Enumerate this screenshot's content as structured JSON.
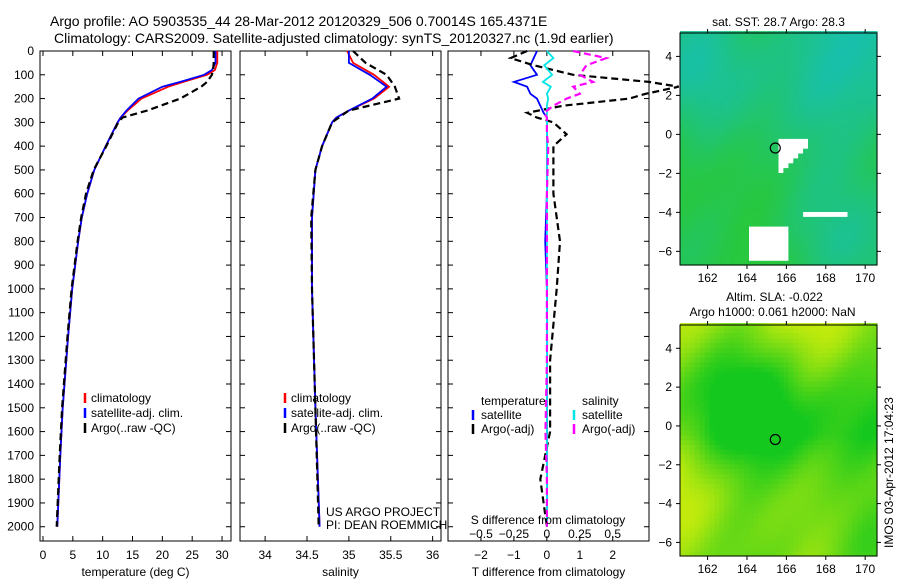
{
  "title_line1": "Argo profile: AO 5903535_44 28-Mar-2012 20120329_506 0.70014S 165.4371E",
  "title_line2": "Climatology: CARS2009. Satellite-adjusted climatology: synTS_20120327.nc (1.9d earlier)",
  "chart_data": [
    {
      "type": "line",
      "name": "temperature-profile",
      "xlabel": "temperature (deg C)",
      "ylabel": "depth",
      "xlim": [
        -0.5,
        31.5
      ],
      "ylim": [
        2060,
        0
      ],
      "xticks": [
        0,
        5,
        10,
        15,
        20,
        25,
        30
      ],
      "yticks": [
        0,
        100,
        200,
        300,
        400,
        500,
        600,
        700,
        800,
        900,
        1000,
        1100,
        1200,
        1300,
        1400,
        1500,
        1600,
        1700,
        1800,
        1900,
        2000
      ],
      "legend": [
        "climatology",
        "satellite-adj. clim.",
        "Argo(..raw -QC)"
      ],
      "legend_position": "bottom-center",
      "depth": [
        0,
        50,
        80,
        100,
        130,
        150,
        200,
        250,
        280,
        300,
        400,
        500,
        600,
        700,
        800,
        1000,
        1200,
        1500,
        1700,
        2000
      ],
      "series": [
        {
          "name": "climatology",
          "color": "#ff0000",
          "values": [
            29.2,
            29.2,
            28.8,
            27.5,
            23.5,
            21,
            16.5,
            14.2,
            13,
            12.5,
            10.5,
            8.6,
            7.4,
            6.5,
            5.9,
            4.9,
            4.2,
            3.3,
            2.9,
            2.4
          ]
        },
        {
          "name": "satellite-adj. clim.",
          "color": "#0000ff",
          "values": [
            28.9,
            28.9,
            28.3,
            27,
            23,
            20,
            16,
            14,
            13,
            12.5,
            10.5,
            8.6,
            7.4,
            6.5,
            5.9,
            4.9,
            4.2,
            3.3,
            2.9,
            2.4
          ]
        },
        {
          "name": "Argo(..raw -QC)",
          "color": "#000000",
          "values": [
            28.6,
            28.6,
            28.5,
            28.3,
            27.5,
            26.5,
            23,
            17.5,
            13.3,
            12.6,
            10.6,
            8.5,
            7.2,
            6.4,
            5.8,
            4.8,
            4.1,
            3.2,
            2.8,
            2.3
          ]
        }
      ]
    },
    {
      "type": "line",
      "name": "salinity-profile",
      "xlabel": "salinity",
      "xlim": [
        33.7,
        36.1
      ],
      "ylim": [
        2060,
        0
      ],
      "xticks": [
        34,
        34.5,
        35,
        35.5,
        36
      ],
      "legend": [
        "climatology",
        "satellite-adj. clim.",
        "Argo(..raw -QC)"
      ],
      "legend_position": "bottom-center",
      "annotation": [
        "US ARGO PROJECT",
        "PI: DEAN ROEMMICH"
      ],
      "depth": [
        0,
        50,
        100,
        150,
        200,
        250,
        280,
        300,
        400,
        500,
        700,
        1000,
        1500,
        2000
      ],
      "series": [
        {
          "name": "climatology",
          "color": "#ff0000",
          "values": [
            34.98,
            35.05,
            35.3,
            35.48,
            35.3,
            35.0,
            34.85,
            34.8,
            34.68,
            34.6,
            34.56,
            34.56,
            34.6,
            34.65
          ]
        },
        {
          "name": "satellite-adj. clim.",
          "color": "#0000ff",
          "values": [
            35.0,
            35.0,
            35.25,
            35.45,
            35.28,
            35.0,
            34.85,
            34.8,
            34.68,
            34.6,
            34.56,
            34.56,
            34.6,
            34.65
          ]
        },
        {
          "name": "Argo(..raw -QC)",
          "color": "#000000",
          "values": [
            35.05,
            35.2,
            35.45,
            35.55,
            35.6,
            35.0,
            34.88,
            34.8,
            34.68,
            34.6,
            34.55,
            34.56,
            34.6,
            34.64
          ]
        }
      ]
    },
    {
      "type": "line",
      "name": "difference-profile",
      "xlabel": "T difference from climatology",
      "x2label": "S difference from climatology",
      "xlim": [
        -3,
        3.1
      ],
      "x2lim": [
        -0.75,
        0.775
      ],
      "ylim": [
        2060,
        0
      ],
      "xticks": [
        -2,
        -1,
        0,
        1,
        2
      ],
      "x2ticks": [
        -0.5,
        -0.25,
        0,
        0.25,
        0.5
      ],
      "legend_temperature": [
        "temperature",
        "satellite",
        "Argo(-adj)"
      ],
      "legend_salinity": [
        "salinity",
        "satellite",
        "Argo(-adj)"
      ],
      "legend_position": "bottom-center",
      "depth": [
        0,
        30,
        60,
        100,
        130,
        150,
        180,
        200,
        230,
        260,
        280,
        300,
        350,
        400,
        600,
        800,
        1000,
        1300,
        1600,
        1800,
        1900,
        2000
      ],
      "series": [
        {
          "name": "T satellite",
          "color": "#0000ff",
          "values": [
            -0.3,
            -0.4,
            -0.5,
            -0.3,
            -1,
            -0.6,
            -0.5,
            -0.3,
            -0.2,
            -0.1,
            0,
            0,
            0,
            0,
            0,
            -0.05,
            0,
            0,
            0,
            0,
            0,
            0
          ]
        },
        {
          "name": "T Argo(-adj)",
          "color": "#000000",
          "values": [
            -0.6,
            -1.1,
            -0.4,
            0.8,
            3.1,
            4,
            3,
            2.5,
            0.5,
            -0.6,
            -0.3,
            0.2,
            0.6,
            0.2,
            0.2,
            0.4,
            0.3,
            0.1,
            0.1,
            -0.2,
            -0.1,
            0
          ]
        },
        {
          "name": "S satellite",
          "color": "#00e5e5",
          "values": [
            0,
            0.05,
            -0.02,
            0.04,
            -0.03,
            0.03,
            0,
            0.01,
            0,
            0,
            0,
            0,
            0,
            0,
            0,
            0,
            0,
            0,
            0,
            0,
            0,
            0
          ]
        },
        {
          "name": "S Argo(-adj)",
          "color": "#ff00ff",
          "values": [
            0.2,
            0.45,
            0.3,
            0.25,
            0.35,
            0.2,
            0.25,
            0.15,
            0.05,
            -0.02,
            0,
            0,
            0,
            0.01,
            0,
            0,
            0,
            0,
            -0.01,
            0,
            0,
            0
          ]
        }
      ]
    },
    {
      "type": "heatmap",
      "name": "sst-map",
      "title": "sat. SST: 28.7 Argo: 28.3",
      "xlim": [
        160.6,
        170.6
      ],
      "ylim": [
        -6.7,
        5.2
      ],
      "xticks": [
        162,
        164,
        166,
        168,
        170
      ],
      "yticks": [
        -6,
        -4,
        -2,
        0,
        2,
        4
      ],
      "argo_position": {
        "lon": 165.4371,
        "lat": -0.70014
      }
    },
    {
      "type": "heatmap",
      "name": "sla-map",
      "title_line1": "Altim. SLA: -0.022",
      "title_line2": "Argo h1000: 0.061 h2000: NaN",
      "xlim": [
        160.6,
        170.6
      ],
      "ylim": [
        -6.7,
        5.2
      ],
      "xticks": [
        162,
        164,
        166,
        168,
        170
      ],
      "yticks": [
        -6,
        -4,
        -2,
        0,
        2,
        4
      ],
      "argo_position": {
        "lon": 165.4371,
        "lat": -0.70014
      }
    }
  ],
  "footer_stamp": "IMOS 03-Apr-2012 17:04:23"
}
